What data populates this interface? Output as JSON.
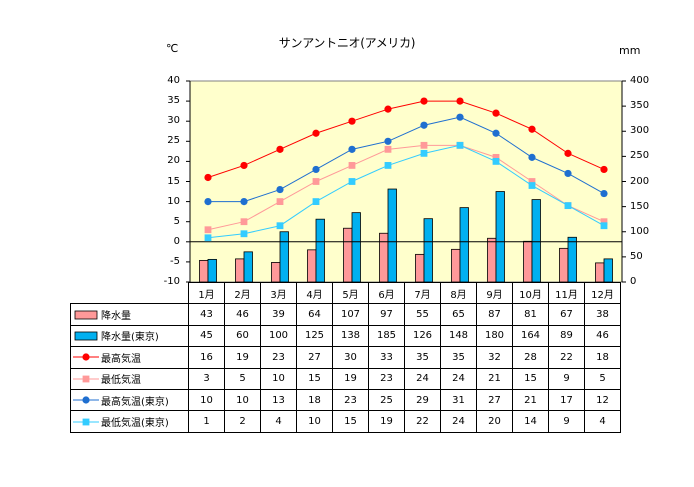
{
  "title": "サンアントニオ(アメリカ)",
  "units": {
    "left": "℃",
    "right": "mm"
  },
  "colors": {
    "plot_bg": "#FFFFCC",
    "precip": "#FF9999",
    "precip_tokyo": "#00B0F0",
    "max_temp": "#FF0000",
    "min_temp": "#FF9999",
    "max_temp_tokyo": "#1F6FD0",
    "min_temp_tokyo": "#33CCFF"
  },
  "chart_data": {
    "type": "bar",
    "categories": [
      "1月",
      "2月",
      "3月",
      "4月",
      "5月",
      "6月",
      "7月",
      "8月",
      "9月",
      "10月",
      "11月",
      "12月"
    ],
    "y_left": {
      "label": "℃",
      "ylim": [
        -10,
        40
      ],
      "ticks": [
        "40",
        "35",
        "30",
        "25",
        "20",
        "15",
        "10",
        "5",
        "0",
        "-5",
        "-10"
      ]
    },
    "y_right": {
      "label": "mm",
      "ylim": [
        0,
        400
      ],
      "ticks": [
        "400",
        "350",
        "300",
        "250",
        "200",
        "150",
        "100",
        "50",
        "0"
      ]
    },
    "grid": false,
    "series": [
      {
        "name": "降水量",
        "type": "bar",
        "axis": "right",
        "values": [
          43,
          46,
          39,
          64,
          107,
          97,
          55,
          65,
          87,
          81,
          67,
          38
        ]
      },
      {
        "name": "降水量(東京)",
        "type": "bar",
        "axis": "right",
        "values": [
          45,
          60,
          100,
          125,
          138,
          185,
          126,
          148,
          180,
          164,
          89,
          46
        ]
      },
      {
        "name": "最高気温",
        "type": "line",
        "axis": "left",
        "marker": "circle",
        "values": [
          16,
          19,
          23,
          27,
          30,
          33,
          35,
          35,
          32,
          28,
          22,
          18
        ]
      },
      {
        "name": "最低気温",
        "type": "line",
        "axis": "left",
        "marker": "square",
        "values": [
          3,
          5,
          10,
          15,
          19,
          23,
          24,
          24,
          21,
          15,
          9,
          5
        ]
      },
      {
        "name": "最高気温(東京)",
        "type": "line",
        "axis": "left",
        "marker": "circle",
        "values": [
          10,
          10,
          13,
          18,
          23,
          25,
          29,
          31,
          27,
          21,
          17,
          12
        ]
      },
      {
        "name": "最低気温(東京)",
        "type": "line",
        "axis": "left",
        "marker": "square",
        "values": [
          1,
          2,
          4,
          10,
          15,
          19,
          22,
          24,
          20,
          14,
          9,
          4
        ]
      }
    ]
  }
}
